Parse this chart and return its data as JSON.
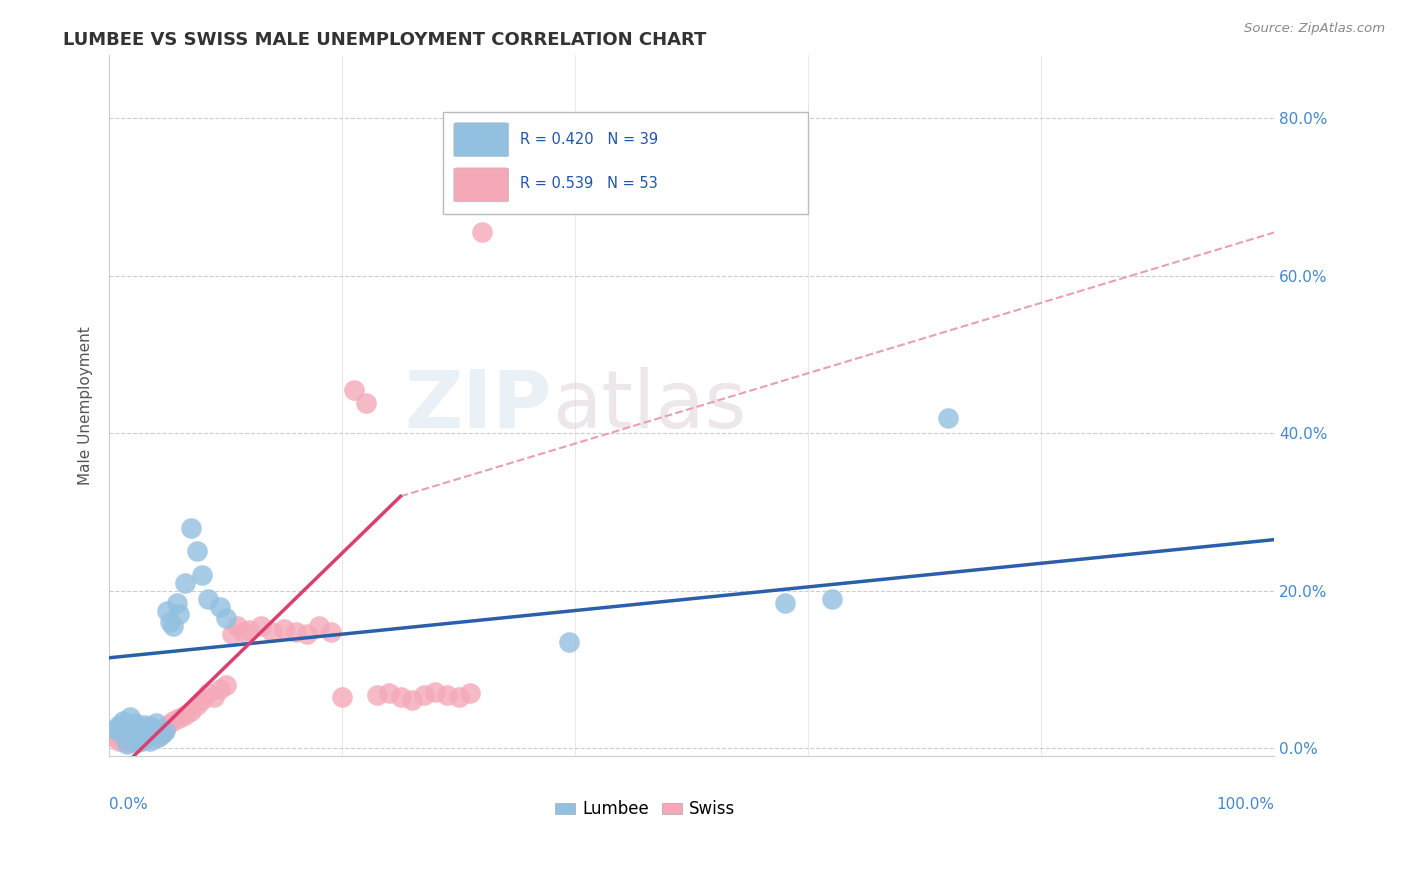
{
  "title": "LUMBEE VS SWISS MALE UNEMPLOYMENT CORRELATION CHART",
  "source": "Source: ZipAtlas.com",
  "ylabel": "Male Unemployment",
  "ytick_labels": [
    "0.0%",
    "20.0%",
    "40.0%",
    "60.0%",
    "80.0%"
  ],
  "ytick_values": [
    0.0,
    0.2,
    0.4,
    0.6,
    0.8
  ],
  "legend_lumbee": "R = 0.420   N = 39",
  "legend_swiss": "R = 0.539   N = 53",
  "lumbee_color": "#92c0e0",
  "swiss_color": "#f4a8b8",
  "lumbee_line_color": "#2b5faa",
  "swiss_solid_color": "#d94070",
  "swiss_dash_color": "#e8a0b0",
  "background_color": "#ffffff",
  "lumbee_x": [
    0.005,
    0.008,
    0.01,
    0.012,
    0.015,
    0.018,
    0.02,
    0.022,
    0.025,
    0.028,
    0.03,
    0.032,
    0.035,
    0.038,
    0.04,
    0.042,
    0.045,
    0.048,
    0.05,
    0.052,
    0.055,
    0.058,
    0.06,
    0.065,
    0.07,
    0.075,
    0.08,
    0.085,
    0.095,
    0.1,
    0.025,
    0.03,
    0.035,
    0.015,
    0.02,
    0.395,
    0.58,
    0.62,
    0.72
  ],
  "lumbee_y": [
    0.025,
    0.03,
    0.02,
    0.035,
    0.028,
    0.04,
    0.022,
    0.032,
    0.025,
    0.018,
    0.03,
    0.022,
    0.028,
    0.025,
    0.032,
    0.015,
    0.018,
    0.022,
    0.175,
    0.16,
    0.155,
    0.185,
    0.17,
    0.21,
    0.28,
    0.25,
    0.22,
    0.19,
    0.18,
    0.165,
    0.008,
    0.012,
    0.01,
    0.005,
    0.008,
    0.135,
    0.185,
    0.19,
    0.42
  ],
  "swiss_x": [
    0.005,
    0.008,
    0.01,
    0.012,
    0.015,
    0.018,
    0.02,
    0.022,
    0.025,
    0.028,
    0.03,
    0.032,
    0.035,
    0.038,
    0.04,
    0.042,
    0.045,
    0.048,
    0.05,
    0.055,
    0.06,
    0.065,
    0.07,
    0.075,
    0.08,
    0.085,
    0.09,
    0.095,
    0.1,
    0.105,
    0.11,
    0.115,
    0.12,
    0.13,
    0.14,
    0.15,
    0.16,
    0.17,
    0.18,
    0.19,
    0.2,
    0.21,
    0.22,
    0.23,
    0.24,
    0.25,
    0.26,
    0.27,
    0.28,
    0.29,
    0.3,
    0.31,
    0.32
  ],
  "swiss_y": [
    0.015,
    0.01,
    0.02,
    0.012,
    0.008,
    0.018,
    0.015,
    0.025,
    0.012,
    0.01,
    0.02,
    0.015,
    0.025,
    0.018,
    0.022,
    0.015,
    0.02,
    0.025,
    0.03,
    0.035,
    0.038,
    0.042,
    0.048,
    0.055,
    0.062,
    0.07,
    0.065,
    0.075,
    0.08,
    0.145,
    0.155,
    0.148,
    0.15,
    0.155,
    0.148,
    0.152,
    0.148,
    0.145,
    0.155,
    0.148,
    0.065,
    0.455,
    0.438,
    0.068,
    0.07,
    0.065,
    0.062,
    0.068,
    0.072,
    0.068,
    0.065,
    0.07,
    0.655
  ],
  "xlim": [
    0.0,
    1.0
  ],
  "ylim": [
    -0.01,
    0.88
  ],
  "lumbee_reg": [
    0.0,
    1.0,
    0.115,
    0.265
  ],
  "swiss_solid_reg": [
    0.0,
    0.25,
    -0.04,
    0.32
  ],
  "swiss_dash_reg": [
    0.25,
    1.0,
    0.32,
    0.655
  ]
}
